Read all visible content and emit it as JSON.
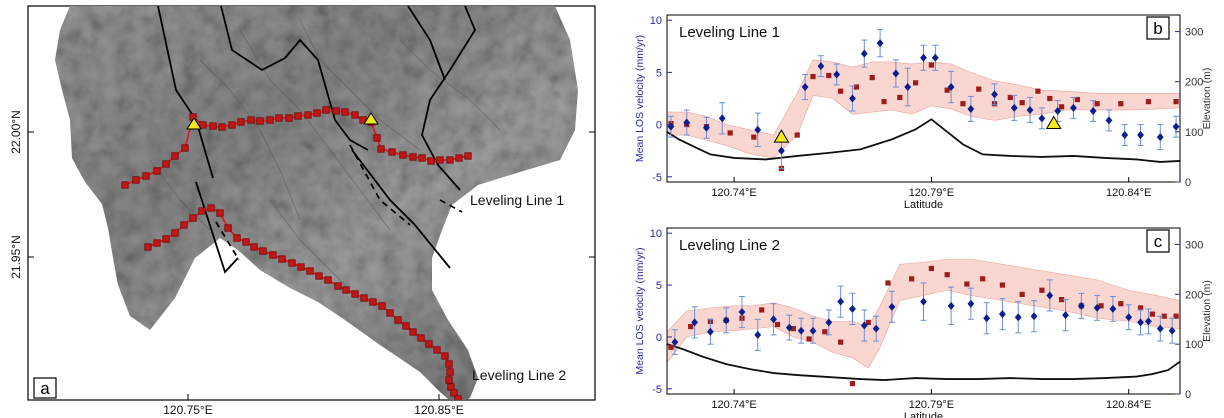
{
  "colors": {
    "track": "#d42020",
    "vertex_fill": "#c01818",
    "vertex_stroke": "#7a0000",
    "los_marker": "#0a1f8f",
    "los_error": "#6d8fd6",
    "model_square": "#9e1c1c",
    "band_fill": "#f7c8c0",
    "elevation_line": "#111111",
    "axis_label_blue": "#2a2aa8",
    "triangle_fill": "#f2ea1c",
    "fault": "#000000"
  },
  "map_panel": {
    "panel_label": "a",
    "x_ticks": [
      "120.75°E",
      "120.85°E"
    ],
    "y_ticks": [
      "22.00°N",
      "21.95°N"
    ],
    "line1_label": "Leveling Line 1",
    "line2_label": "Leveling Line 2",
    "icons": [
      "triangle-benchmark-icon",
      "square-vertex-icon",
      "hillshade-terrain"
    ]
  },
  "chart_data": [
    {
      "type": "scatter",
      "panel_label": "b",
      "title": "Leveling Line 1",
      "xlabel": "Latitude",
      "ylabel_left": "Mean LOS velocity (mm/yr)",
      "ylabel_right": "Elevation (m)",
      "x_ticks": [
        120.74,
        120.79,
        120.84
      ],
      "x_tick_labels": [
        "120.74°E",
        "120.79°E",
        "120.84°E"
      ],
      "xlim": [
        120.723,
        120.853
      ],
      "ylim": [
        -5.5,
        10.5
      ],
      "y_ticks": [
        -5,
        0,
        5,
        10
      ],
      "y_right_ticks": [
        0,
        100,
        200,
        300
      ],
      "y_right_lim": [
        0,
        333
      ],
      "grid": false,
      "los_points": [
        {
          "x": 120.724,
          "y": -0.2,
          "err": 1.0
        },
        {
          "x": 120.728,
          "y": 0.2,
          "err": 1.2
        },
        {
          "x": 120.733,
          "y": -0.3,
          "err": 1.0
        },
        {
          "x": 120.737,
          "y": 0.6,
          "err": 1.5
        },
        {
          "x": 120.746,
          "y": -0.5,
          "err": 1.6
        },
        {
          "x": 120.752,
          "y": -2.5,
          "err": 1.7
        },
        {
          "x": 120.758,
          "y": 3.6,
          "err": 1.2
        },
        {
          "x": 120.762,
          "y": 5.6,
          "err": 1.0
        },
        {
          "x": 120.766,
          "y": 4.8,
          "err": 1.0
        },
        {
          "x": 120.77,
          "y": 2.5,
          "err": 1.2
        },
        {
          "x": 120.773,
          "y": 6.8,
          "err": 1.3
        },
        {
          "x": 120.777,
          "y": 7.8,
          "err": 1.3
        },
        {
          "x": 120.781,
          "y": 4.9,
          "err": 1.3
        },
        {
          "x": 120.784,
          "y": 3.6,
          "err": 1.8
        },
        {
          "x": 120.788,
          "y": 6.4,
          "err": 1.2
        },
        {
          "x": 120.791,
          "y": 6.4,
          "err": 1.2
        },
        {
          "x": 120.795,
          "y": 3.6,
          "err": 1.5
        },
        {
          "x": 120.8,
          "y": 1.5,
          "err": 1.2
        },
        {
          "x": 120.806,
          "y": 2.9,
          "err": 1.0
        },
        {
          "x": 120.811,
          "y": 1.6,
          "err": 1.2
        },
        {
          "x": 120.815,
          "y": 1.4,
          "err": 1.2
        },
        {
          "x": 120.818,
          "y": 0.6,
          "err": 1.0
        },
        {
          "x": 120.822,
          "y": 1.3,
          "err": 1.0
        },
        {
          "x": 120.826,
          "y": 1.6,
          "err": 1.0
        },
        {
          "x": 120.831,
          "y": 1.3,
          "err": 1.0
        },
        {
          "x": 120.835,
          "y": 0.4,
          "err": 1.0
        },
        {
          "x": 120.839,
          "y": -1.0,
          "err": 1.0
        },
        {
          "x": 120.843,
          "y": -1.0,
          "err": 1.0
        },
        {
          "x": 120.848,
          "y": -1.2,
          "err": 1.2
        },
        {
          "x": 120.852,
          "y": -0.2,
          "err": 1.0
        }
      ],
      "model_points": [
        {
          "x": 120.724,
          "y": 0.1
        },
        {
          "x": 120.728,
          "y": 0.0
        },
        {
          "x": 120.733,
          "y": -0.2
        },
        {
          "x": 120.739,
          "y": -0.8
        },
        {
          "x": 120.745,
          "y": -1.2
        },
        {
          "x": 120.752,
          "y": -4.2
        },
        {
          "x": 120.756,
          "y": -1.0
        },
        {
          "x": 120.76,
          "y": 4.6
        },
        {
          "x": 120.764,
          "y": 4.7
        },
        {
          "x": 120.767,
          "y": 3.2
        },
        {
          "x": 120.771,
          "y": 3.6
        },
        {
          "x": 120.775,
          "y": 4.5
        },
        {
          "x": 120.778,
          "y": 2.2
        },
        {
          "x": 120.782,
          "y": 2.6
        },
        {
          "x": 120.786,
          "y": 4.0
        },
        {
          "x": 120.79,
          "y": 5.7
        },
        {
          "x": 120.794,
          "y": 3.3
        },
        {
          "x": 120.798,
          "y": 2.0
        },
        {
          "x": 120.802,
          "y": 3.4
        },
        {
          "x": 120.806,
          "y": 2.0
        },
        {
          "x": 120.81,
          "y": 2.6
        },
        {
          "x": 120.813,
          "y": 2.1
        },
        {
          "x": 120.817,
          "y": 3.2
        },
        {
          "x": 120.82,
          "y": 2.5
        },
        {
          "x": 120.823,
          "y": 1.7
        },
        {
          "x": 120.827,
          "y": 2.4
        },
        {
          "x": 120.832,
          "y": 2.0
        },
        {
          "x": 120.838,
          "y": 2.0
        },
        {
          "x": 120.845,
          "y": 2.2
        },
        {
          "x": 120.852,
          "y": 2.2
        }
      ],
      "band_upper": [
        1.2,
        1.2,
        0.8,
        0.0,
        -0.5,
        -1.0,
        3.0,
        6.2,
        6.0,
        5.5,
        6.0,
        6.0,
        5.8,
        6.0,
        5.8,
        5.0,
        4.2,
        3.8,
        3.3,
        3.2,
        3.0,
        3.0,
        3.0
      ],
      "band_lower": [
        -1.0,
        -1.0,
        -1.5,
        -2.0,
        -2.8,
        -3.2,
        -1.0,
        2.8,
        2.5,
        1.0,
        1.2,
        1.4,
        1.0,
        1.8,
        1.5,
        0.8,
        0.4,
        0.8,
        1.0,
        1.4,
        1.4,
        1.4,
        1.6
      ],
      "band_x": [
        120.723,
        120.728,
        120.733,
        120.738,
        120.744,
        120.75,
        120.756,
        120.76,
        120.765,
        120.77,
        120.775,
        120.78,
        120.785,
        120.79,
        120.795,
        120.8,
        120.806,
        120.812,
        120.818,
        120.824,
        120.832,
        120.842,
        120.853
      ],
      "triangles": [
        {
          "x": 120.752,
          "y": -1.2
        },
        {
          "x": 120.821,
          "y": 0.1
        }
      ],
      "elevation": {
        "x": [
          120.723,
          120.726,
          120.73,
          120.734,
          120.74,
          120.748,
          120.756,
          120.764,
          120.772,
          120.78,
          120.786,
          120.79,
          120.794,
          120.798,
          120.803,
          120.81,
          120.818,
          120.826,
          120.834,
          120.842,
          120.848,
          120.853
        ],
        "y": [
          100,
          85,
          70,
          55,
          48,
          45,
          52,
          58,
          65,
          85,
          105,
          125,
          100,
          75,
          55,
          52,
          50,
          52,
          48,
          45,
          40,
          42
        ]
      }
    },
    {
      "type": "scatter",
      "panel_label": "c",
      "title": "Leveling Line 2",
      "xlabel": "Latitude",
      "ylabel_left": "Mean LOS velocity (mm/yr)",
      "ylabel_right": "Elevation (m)",
      "x_ticks": [
        120.74,
        120.79,
        120.84
      ],
      "x_tick_labels": [
        "120.74°E",
        "120.79°E",
        "120.84°E"
      ],
      "xlim": [
        120.723,
        120.853
      ],
      "ylim": [
        -5.5,
        10.5
      ],
      "y_ticks": [
        -5,
        0,
        5,
        10
      ],
      "y_right_ticks": [
        0,
        100,
        200,
        300
      ],
      "y_right_lim": [
        0,
        333
      ],
      "grid": false,
      "los_points": [
        {
          "x": 120.725,
          "y": -0.5,
          "err": 1.2
        },
        {
          "x": 120.73,
          "y": 1.4,
          "err": 1.5
        },
        {
          "x": 120.734,
          "y": 0.5,
          "err": 1.2
        },
        {
          "x": 120.738,
          "y": 1.6,
          "err": 1.2
        },
        {
          "x": 120.742,
          "y": 2.4,
          "err": 1.5
        },
        {
          "x": 120.746,
          "y": 0.2,
          "err": 1.5
        },
        {
          "x": 120.75,
          "y": 1.7,
          "err": 1.5
        },
        {
          "x": 120.754,
          "y": 0.9,
          "err": 1.2
        },
        {
          "x": 120.757,
          "y": 0.6,
          "err": 1.2
        },
        {
          "x": 120.76,
          "y": 0.6,
          "err": 1.2
        },
        {
          "x": 120.764,
          "y": 1.4,
          "err": 1.2
        },
        {
          "x": 120.767,
          "y": 3.4,
          "err": 1.5
        },
        {
          "x": 120.77,
          "y": 2.7,
          "err": 1.5
        },
        {
          "x": 120.773,
          "y": 1.1,
          "err": 1.5
        },
        {
          "x": 120.776,
          "y": 0.8,
          "err": 1.2
        },
        {
          "x": 120.78,
          "y": 2.9,
          "err": 1.5
        },
        {
          "x": 120.788,
          "y": 3.4,
          "err": 1.8
        },
        {
          "x": 120.795,
          "y": 3.0,
          "err": 1.8
        },
        {
          "x": 120.8,
          "y": 3.2,
          "err": 1.5
        },
        {
          "x": 120.804,
          "y": 1.8,
          "err": 1.5
        },
        {
          "x": 120.808,
          "y": 2.2,
          "err": 1.5
        },
        {
          "x": 120.812,
          "y": 1.9,
          "err": 1.5
        },
        {
          "x": 120.816,
          "y": 2.0,
          "err": 1.5
        },
        {
          "x": 120.82,
          "y": 4.0,
          "err": 1.5
        },
        {
          "x": 120.824,
          "y": 2.1,
          "err": 1.5
        },
        {
          "x": 120.828,
          "y": 3.0,
          "err": 1.2
        },
        {
          "x": 120.832,
          "y": 2.8,
          "err": 1.2
        },
        {
          "x": 120.836,
          "y": 2.7,
          "err": 1.2
        },
        {
          "x": 120.84,
          "y": 1.9,
          "err": 1.2
        },
        {
          "x": 120.843,
          "y": 1.4,
          "err": 1.2
        },
        {
          "x": 120.845,
          "y": 1.5,
          "err": 1.2
        },
        {
          "x": 120.848,
          "y": 0.8,
          "err": 1.2
        },
        {
          "x": 120.851,
          "y": 0.6,
          "err": 1.2
        }
      ],
      "model_points": [
        {
          "x": 120.724,
          "y": -1.0
        },
        {
          "x": 120.729,
          "y": 1.0
        },
        {
          "x": 120.734,
          "y": 1.5
        },
        {
          "x": 120.738,
          "y": 1.6
        },
        {
          "x": 120.742,
          "y": 1.8
        },
        {
          "x": 120.747,
          "y": 2.6
        },
        {
          "x": 120.751,
          "y": 1.2
        },
        {
          "x": 120.755,
          "y": 0.8
        },
        {
          "x": 120.759,
          "y": -0.2
        },
        {
          "x": 120.763,
          "y": 0.5
        },
        {
          "x": 120.767,
          "y": -0.5
        },
        {
          "x": 120.77,
          "y": -4.5
        },
        {
          "x": 120.774,
          "y": 1.4
        },
        {
          "x": 120.779,
          "y": 5.2
        },
        {
          "x": 120.785,
          "y": 5.6
        },
        {
          "x": 120.79,
          "y": 6.6
        },
        {
          "x": 120.794,
          "y": 6.0
        },
        {
          "x": 120.799,
          "y": 5.1
        },
        {
          "x": 120.803,
          "y": 5.6
        },
        {
          "x": 120.808,
          "y": 5.0
        },
        {
          "x": 120.813,
          "y": 4.1
        },
        {
          "x": 120.818,
          "y": 4.5
        },
        {
          "x": 120.823,
          "y": 3.6
        },
        {
          "x": 120.828,
          "y": 3.0
        },
        {
          "x": 120.833,
          "y": 3.0
        },
        {
          "x": 120.838,
          "y": 3.2
        },
        {
          "x": 120.843,
          "y": 2.8
        },
        {
          "x": 120.846,
          "y": 2.2
        },
        {
          "x": 120.849,
          "y": 2.0
        },
        {
          "x": 120.852,
          "y": 2.0
        }
      ],
      "band_upper": [
        0.5,
        2.5,
        2.8,
        3.0,
        3.0,
        3.3,
        2.8,
        2.0,
        1.5,
        1.5,
        1.0,
        3.0,
        7.0,
        7.2,
        7.5,
        7.5,
        7.0,
        6.5,
        6.0,
        5.5,
        4.5,
        4.0,
        3.5
      ],
      "band_lower": [
        -2.5,
        0.0,
        0.5,
        0.6,
        0.8,
        1.0,
        0.0,
        -0.5,
        -1.5,
        -2.0,
        -3.0,
        -1.0,
        3.5,
        4.0,
        4.5,
        4.0,
        3.5,
        3.0,
        2.5,
        1.8,
        1.5,
        1.0,
        0.8
      ],
      "band_x": [
        120.723,
        120.728,
        120.734,
        120.74,
        120.745,
        120.75,
        120.755,
        120.76,
        120.765,
        120.77,
        120.774,
        120.777,
        120.782,
        120.788,
        120.794,
        120.8,
        120.808,
        120.816,
        120.824,
        120.832,
        120.84,
        120.847,
        120.853
      ],
      "triangles": [],
      "elevation": {
        "x": [
          120.723,
          120.727,
          120.732,
          120.738,
          120.744,
          120.75,
          120.756,
          120.762,
          120.768,
          120.772,
          120.778,
          120.786,
          120.794,
          120.802,
          120.81,
          120.818,
          120.826,
          120.834,
          120.842,
          120.846,
          120.85,
          120.853
        ],
        "y": [
          100,
          90,
          75,
          60,
          50,
          42,
          38,
          35,
          32,
          30,
          28,
          32,
          30,
          30,
          32,
          30,
          30,
          32,
          35,
          40,
          48,
          65
        ]
      }
    }
  ]
}
